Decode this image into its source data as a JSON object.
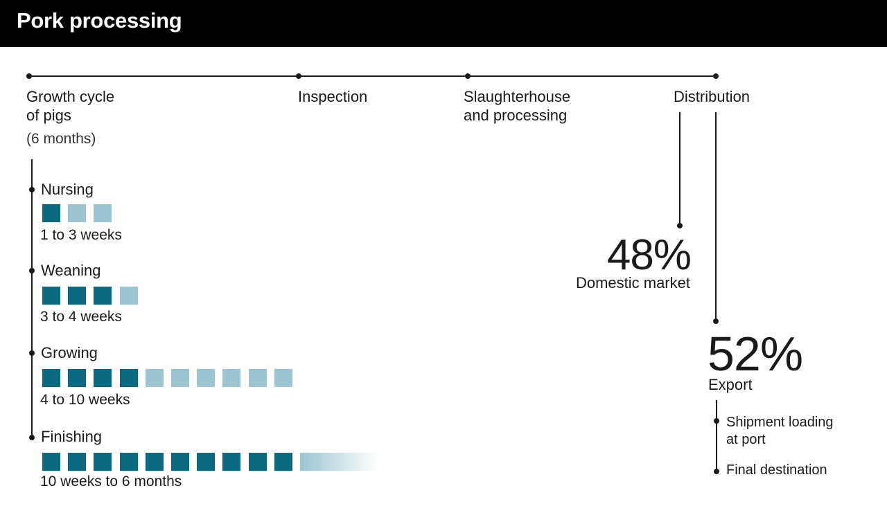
{
  "header": {
    "title": "Pork processing"
  },
  "timeline": {
    "steps": [
      {
        "label": "Growth cycle\nof pigs"
      },
      {
        "label": "Inspection"
      },
      {
        "label": "Slaughterhouse\nand processing"
      },
      {
        "label": "Distribution"
      }
    ],
    "growth_duration": "(6 months)"
  },
  "stages": [
    {
      "name": "Nursing",
      "duration": "1 to 3 weeks",
      "dark_blocks": 1,
      "light_blocks": 2,
      "fade": false
    },
    {
      "name": "Weaning",
      "duration": "3 to 4 weeks",
      "dark_blocks": 3,
      "light_blocks": 1,
      "fade": false
    },
    {
      "name": "Growing",
      "duration": "4 to 10 weeks",
      "dark_blocks": 4,
      "light_blocks": 6,
      "fade": false
    },
    {
      "name": "Finishing",
      "duration": "10 weeks to 6 months",
      "dark_blocks": 10,
      "light_blocks": 0,
      "fade": true
    }
  ],
  "colors": {
    "dark_block": "#0b6a80",
    "light_block": "#9cc4d1"
  },
  "distribution": {
    "domestic": {
      "percent": "48%",
      "label": "Domestic market"
    },
    "export": {
      "percent": "52%",
      "label": "Export"
    },
    "export_steps": [
      {
        "label": "Shipment loading\nat port"
      },
      {
        "label": "Final destination"
      }
    ]
  }
}
